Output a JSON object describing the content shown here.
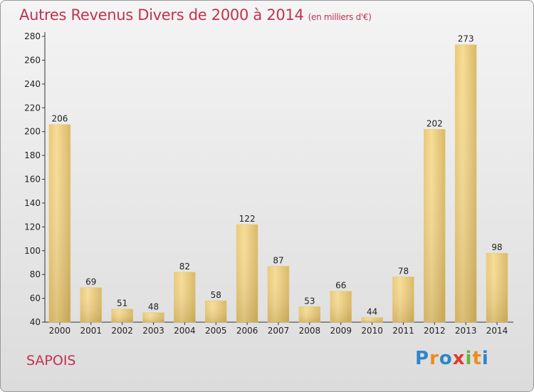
{
  "title": "Autres Revenus Divers de 2000 à 2014",
  "title_unit": "(en milliers d'€)",
  "commune": "SAPOIS",
  "logo": {
    "text": "Proxiti",
    "letters": [
      {
        "ch": "P",
        "color": "#2e86c8"
      },
      {
        "ch": "r",
        "color": "#f08a1c"
      },
      {
        "ch": "o",
        "color": "#2e86c8"
      },
      {
        "ch": "x",
        "color": "#e03a2a"
      },
      {
        "ch": "i",
        "color": "#6ab23e"
      },
      {
        "ch": "t",
        "color": "#f08a1c"
      },
      {
        "ch": "i",
        "color": "#2e86c8"
      }
    ]
  },
  "colors": {
    "title": "#c0334f",
    "bar_light": "#f6dc96",
    "bar_dark": "#c9a955"
  },
  "chart_data": {
    "type": "bar",
    "title": "Autres Revenus Divers de 2000 à 2014",
    "categories": [
      "2000",
      "2001",
      "2002",
      "2003",
      "2004",
      "2005",
      "2006",
      "2007",
      "2008",
      "2009",
      "2010",
      "2011",
      "2012",
      "2013",
      "2014"
    ],
    "values": [
      206,
      69,
      51,
      48,
      82,
      58,
      122,
      87,
      53,
      66,
      44,
      78,
      202,
      273,
      98
    ],
    "xlabel": "",
    "ylabel": "",
    "ylim": [
      40,
      280
    ],
    "yticks": [
      40,
      60,
      80,
      100,
      120,
      140,
      160,
      180,
      200,
      220,
      240,
      260,
      280
    ],
    "grid": false,
    "legend": "none"
  }
}
